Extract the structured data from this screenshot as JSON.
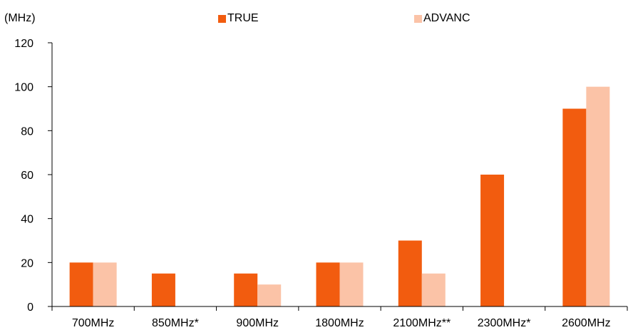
{
  "chart_data": {
    "type": "bar",
    "unit_label": "(MHz)",
    "categories": [
      "700MHz",
      "850MHz*",
      "900MHz",
      "1800MHz",
      "2100MHz**",
      "2300MHz*",
      "2600MHz"
    ],
    "series": [
      {
        "name": "TRUE",
        "color": "#F25C0F",
        "values": [
          20,
          15,
          15,
          20,
          30,
          60,
          90
        ]
      },
      {
        "name": "ADVANC",
        "color": "#FBC3A7",
        "values": [
          20,
          0,
          10,
          20,
          15,
          0,
          100
        ]
      }
    ],
    "ylim": [
      0,
      120
    ],
    "yticks": [
      "0",
      "20",
      "40",
      "60",
      "80",
      "100",
      "120"
    ],
    "legend_position": "top",
    "grid": false
  }
}
